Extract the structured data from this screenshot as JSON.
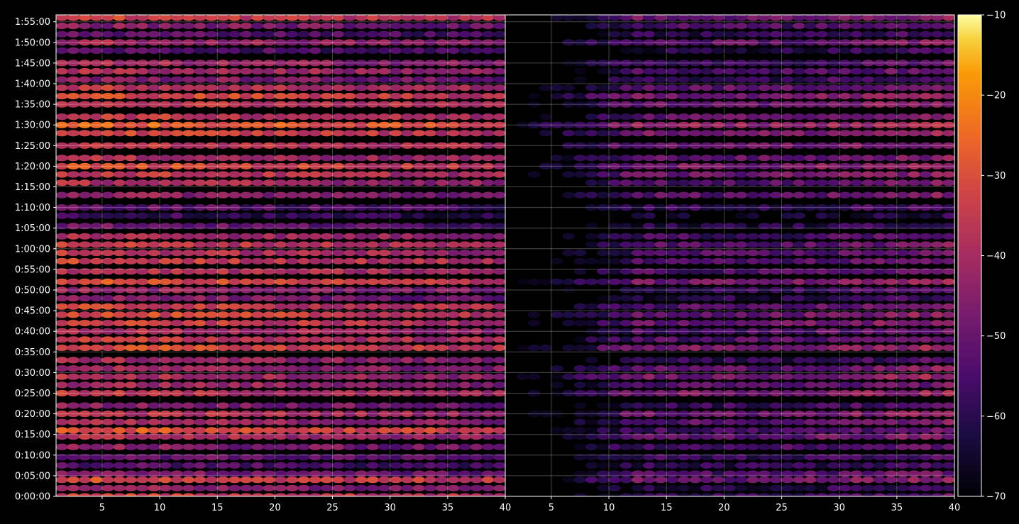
{
  "chart_data": {
    "type": "heatmap",
    "title": "",
    "colormap": "inferno",
    "background": "#000000",
    "grid": true,
    "panels": [
      {
        "name": "",
        "xlim": [
          1,
          40
        ],
        "x_ticks": [
          5,
          10,
          15,
          20,
          25,
          30,
          35,
          40
        ],
        "x_tick_labels": [
          "5",
          "10",
          "15",
          "20",
          "25",
          "30",
          "35",
          "40"
        ],
        "columns": 39
      },
      {
        "name": "",
        "xlim": [
          1,
          40
        ],
        "x_ticks": [
          5,
          10,
          15,
          20,
          25,
          30,
          35,
          40
        ],
        "x_tick_labels": [
          "5",
          "10",
          "15",
          "20",
          "25",
          "30",
          "35",
          "40"
        ],
        "columns": 39
      }
    ],
    "y_axis": {
      "range_seconds": [
        0,
        7000
      ],
      "tick_seconds": [
        0,
        300,
        600,
        900,
        1200,
        1500,
        1800,
        2100,
        2400,
        2700,
        3000,
        3300,
        3600,
        3900,
        4200,
        4500,
        4800,
        5100,
        5400,
        5700,
        6000,
        6300,
        6600,
        6900
      ],
      "tick_labels": [
        "0:00:00",
        "0:05:00",
        "0:10:00",
        "0:15:00",
        "0:20:00",
        "0:25:00",
        "0:30:00",
        "0:35:00",
        "0:40:00",
        "0:45:00",
        "0:50:00",
        "0:55:00",
        "1:00:00",
        "1:05:00",
        "1:10:00",
        "1:15:00",
        "1:20:00",
        "1:25:00",
        "1:30:00",
        "1:35:00",
        "1:40:00",
        "1:45:00",
        "1:50:00",
        "1:55:00"
      ]
    },
    "colorbar": {
      "range": [
        -70,
        -10
      ],
      "ticks": [
        -10,
        -20,
        -30,
        -40,
        -50,
        -60,
        -70
      ],
      "tick_labels": [
        "−10",
        "−20",
        "−30",
        "−40",
        "−50",
        "−60",
        "−70"
      ]
    },
    "row_profile_seconds": [
      [
        0,
        -32,
        -58
      ],
      [
        120,
        -42,
        -62
      ],
      [
        240,
        -30,
        -50
      ],
      [
        330,
        -45,
        -55
      ],
      [
        450,
        -52,
        -60
      ],
      [
        570,
        -48,
        -58
      ],
      [
        720,
        -44,
        -56
      ],
      [
        870,
        -38,
        -52
      ],
      [
        960,
        -28,
        -56
      ],
      [
        1080,
        -40,
        -53
      ],
      [
        1200,
        -36,
        -50
      ],
      [
        1320,
        -44,
        -58
      ],
      [
        1500,
        -36,
        -48
      ],
      [
        1620,
        -40,
        -54
      ],
      [
        1740,
        -38,
        -48
      ],
      [
        1860,
        -41,
        -52
      ],
      [
        1980,
        -40,
        -60
      ],
      [
        2160,
        -30,
        -48
      ],
      [
        2280,
        -34,
        -54
      ],
      [
        2400,
        -38,
        -55
      ],
      [
        2520,
        -33,
        -50
      ],
      [
        2640,
        -31,
        -50
      ],
      [
        2760,
        -33,
        -54
      ],
      [
        2880,
        -44,
        -62
      ],
      [
        3000,
        -42,
        -58
      ],
      [
        3120,
        -30,
        -49
      ],
      [
        3270,
        -36,
        -55
      ],
      [
        3420,
        -33,
        -55
      ],
      [
        3540,
        -36,
        -55
      ],
      [
        3660,
        -34,
        -54
      ],
      [
        3780,
        -38,
        -56
      ],
      [
        3930,
        -48,
        -62
      ],
      [
        4080,
        -56,
        -66
      ],
      [
        4200,
        -50,
        -60
      ],
      [
        4380,
        -42,
        -52
      ],
      [
        4560,
        -38,
        -54
      ],
      [
        4680,
        -34,
        -50
      ],
      [
        4800,
        -30,
        -48
      ],
      [
        4920,
        -38,
        -52
      ],
      [
        5100,
        -34,
        -50
      ],
      [
        5280,
        -31,
        -48
      ],
      [
        5400,
        -26,
        -44
      ],
      [
        5520,
        -34,
        -52
      ],
      [
        5700,
        -33,
        -50
      ],
      [
        5820,
        -30,
        -48
      ],
      [
        5940,
        -35,
        -52
      ],
      [
        6060,
        -44,
        -58
      ],
      [
        6180,
        -38,
        -55
      ],
      [
        6300,
        -40,
        -56
      ],
      [
        6480,
        -52,
        -62
      ],
      [
        6600,
        -40,
        -52
      ],
      [
        6720,
        -50,
        -60
      ],
      [
        6840,
        -44,
        -55
      ],
      [
        6960,
        -32,
        -50
      ]
    ]
  }
}
